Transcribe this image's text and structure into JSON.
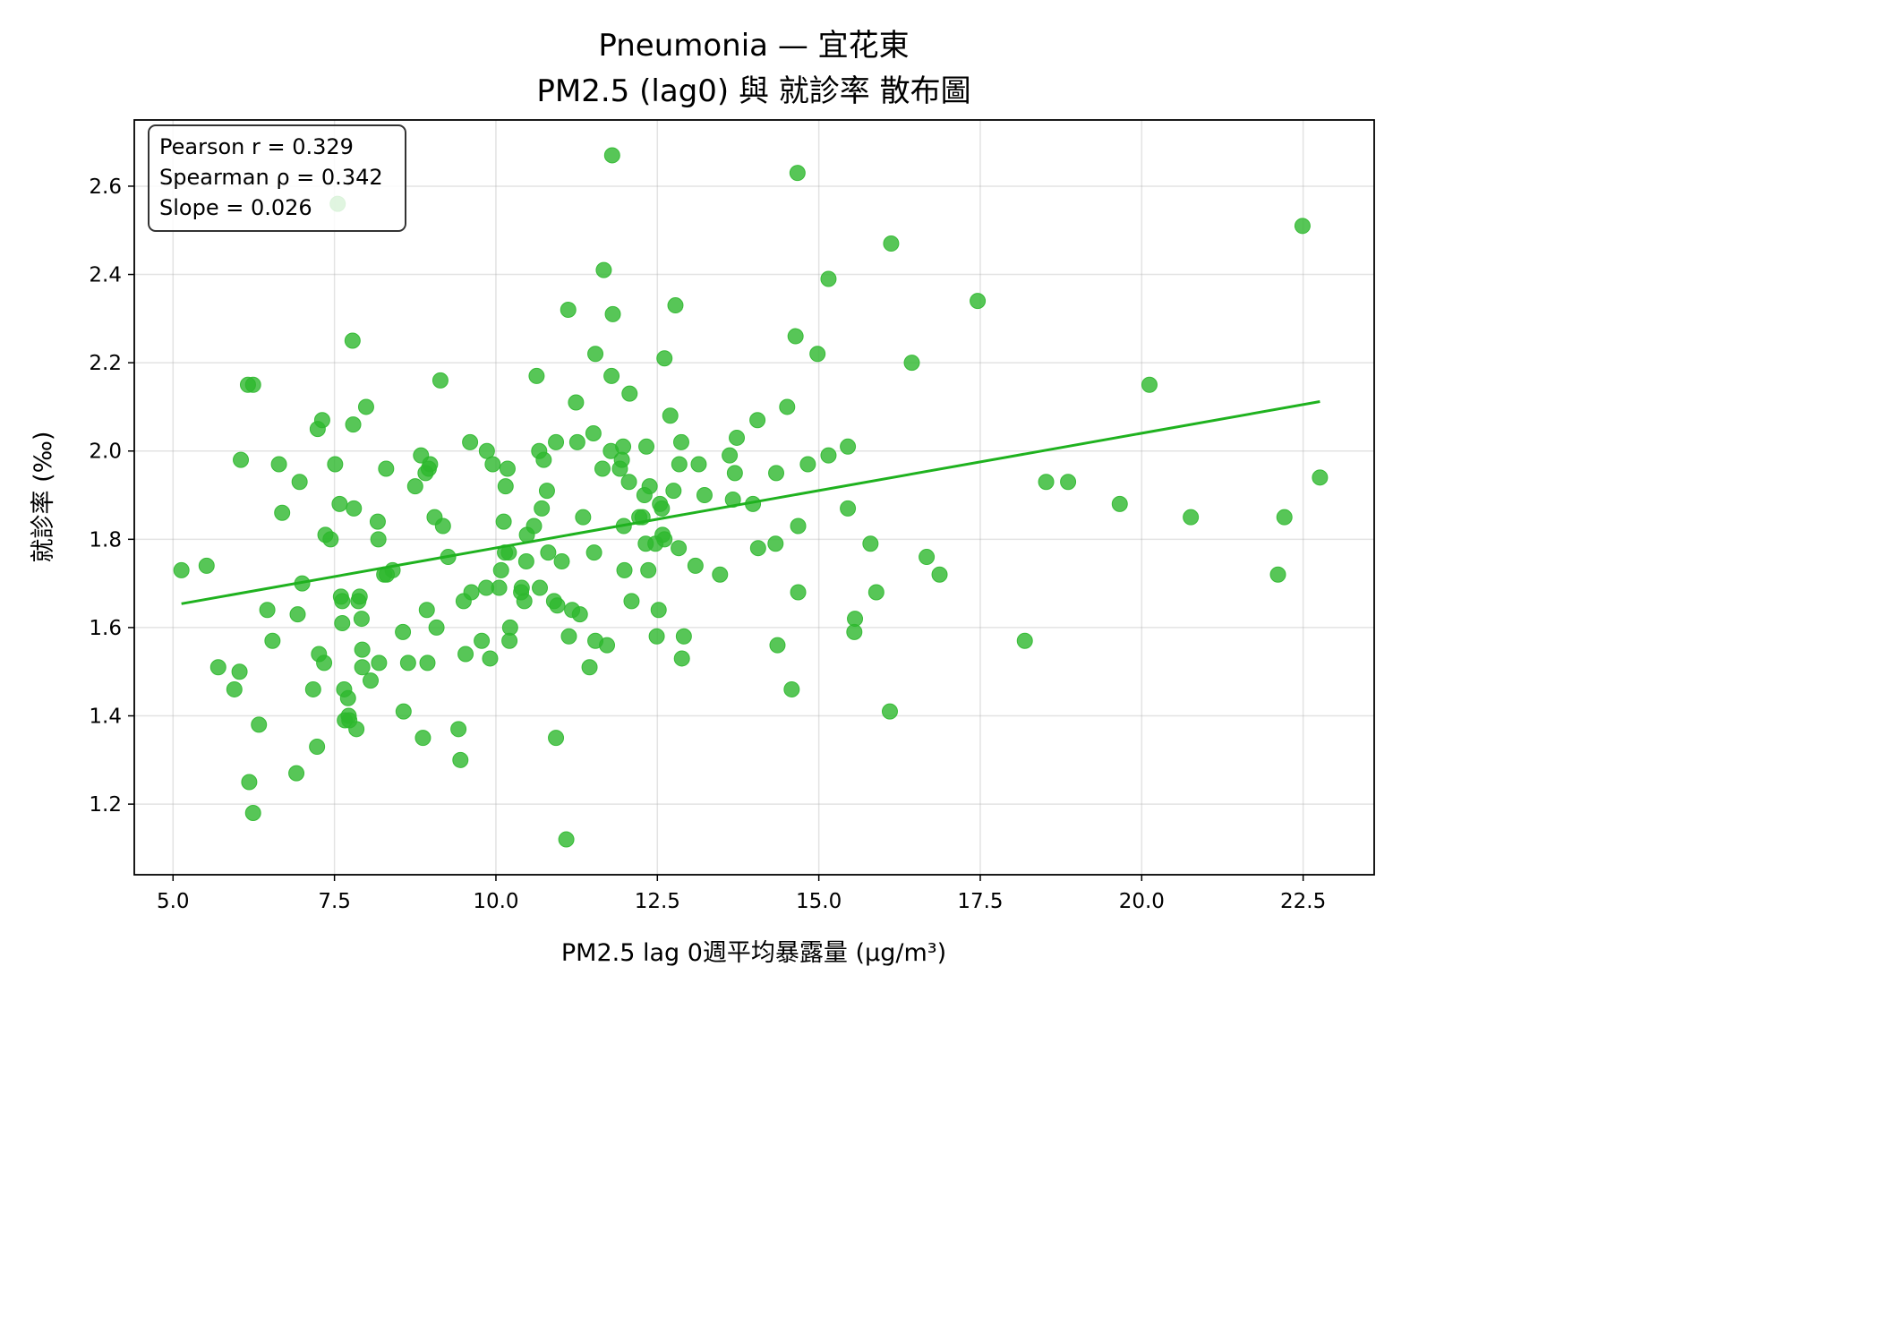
{
  "chart_data": {
    "type": "scatter",
    "title": "Pneumonia — 宜花東",
    "subtitle": "PM2.5 (lag0) 與 就診率 散布圖",
    "xlabel": "PM2.5 lag 0週平均暴露量 (μg/m³)",
    "ylabel": "就診率 (‰)",
    "xlim": [
      4.4,
      23.6
    ],
    "ylim": [
      1.04,
      2.75
    ],
    "x_ticks": [
      "5.0",
      "7.5",
      "10.0",
      "12.5",
      "15.0",
      "17.5",
      "20.0",
      "22.5"
    ],
    "y_ticks": [
      "1.2",
      "1.4",
      "1.6",
      "1.8",
      "2.0",
      "2.2",
      "2.4",
      "2.6"
    ],
    "grid": true,
    "colors": {
      "points": "#2db82d",
      "fit_line": "#1fb21f"
    },
    "stats": {
      "pearson": "Pearson r = 0.329",
      "spearman": "Spearman ρ = 0.342",
      "slope": "Slope = 0.026"
    },
    "fit_line": {
      "x": [
        5.13,
        22.76
      ],
      "y": [
        1.654,
        2.112
      ]
    },
    "points": [
      [
        5.13,
        1.73
      ],
      [
        5.52,
        1.74
      ],
      [
        5.7,
        1.51
      ],
      [
        5.95,
        1.46
      ],
      [
        6.03,
        1.5
      ],
      [
        6.05,
        1.98
      ],
      [
        6.16,
        2.15
      ],
      [
        6.24,
        2.15
      ],
      [
        6.18,
        1.25
      ],
      [
        6.24,
        1.18
      ],
      [
        6.33,
        1.38
      ],
      [
        6.46,
        1.64
      ],
      [
        6.54,
        1.57
      ],
      [
        6.64,
        1.97
      ],
      [
        6.69,
        1.86
      ],
      [
        6.91,
        1.27
      ],
      [
        6.93,
        1.63
      ],
      [
        6.96,
        1.93
      ],
      [
        7.0,
        1.7
      ],
      [
        7.17,
        1.46
      ],
      [
        7.23,
        1.33
      ],
      [
        7.24,
        2.05
      ],
      [
        7.26,
        1.54
      ],
      [
        7.31,
        2.07
      ],
      [
        7.34,
        1.52
      ],
      [
        7.36,
        1.81
      ],
      [
        7.44,
        1.8
      ],
      [
        7.55,
        2.56
      ],
      [
        7.51,
        1.97
      ],
      [
        7.58,
        1.88
      ],
      [
        7.6,
        1.67
      ],
      [
        7.62,
        1.66
      ],
      [
        7.62,
        1.61
      ],
      [
        7.65,
        1.46
      ],
      [
        7.66,
        1.39
      ],
      [
        7.71,
        1.44
      ],
      [
        7.72,
        1.4
      ],
      [
        7.73,
        1.39
      ],
      [
        7.78,
        2.25
      ],
      [
        7.79,
        2.06
      ],
      [
        7.8,
        1.87
      ],
      [
        7.84,
        1.37
      ],
      [
        7.87,
        1.66
      ],
      [
        7.89,
        1.67
      ],
      [
        7.92,
        1.62
      ],
      [
        7.93,
        1.55
      ],
      [
        7.93,
        1.51
      ],
      [
        7.99,
        2.1
      ],
      [
        8.06,
        1.48
      ],
      [
        8.19,
        1.52
      ],
      [
        8.17,
        1.84
      ],
      [
        8.18,
        1.8
      ],
      [
        8.27,
        1.72
      ],
      [
        8.3,
        1.96
      ],
      [
        8.31,
        1.72
      ],
      [
        8.4,
        1.73
      ],
      [
        8.56,
        1.59
      ],
      [
        8.57,
        1.41
      ],
      [
        8.64,
        1.52
      ],
      [
        8.75,
        1.92
      ],
      [
        8.84,
        1.99
      ],
      [
        8.87,
        1.35
      ],
      [
        8.91,
        1.95
      ],
      [
        8.93,
        1.64
      ],
      [
        8.94,
        1.52
      ],
      [
        8.96,
        1.96
      ],
      [
        8.98,
        1.97
      ],
      [
        9.05,
        1.85
      ],
      [
        9.08,
        1.6
      ],
      [
        9.14,
        2.16
      ],
      [
        9.18,
        1.83
      ],
      [
        9.26,
        1.76
      ],
      [
        9.42,
        1.37
      ],
      [
        9.45,
        1.3
      ],
      [
        9.5,
        1.66
      ],
      [
        9.53,
        1.54
      ],
      [
        9.6,
        2.02
      ],
      [
        9.62,
        1.68
      ],
      [
        9.78,
        1.57
      ],
      [
        9.85,
        1.69
      ],
      [
        9.86,
        2.0
      ],
      [
        9.91,
        1.53
      ],
      [
        9.95,
        1.97
      ],
      [
        10.05,
        1.69
      ],
      [
        10.08,
        1.73
      ],
      [
        10.12,
        1.84
      ],
      [
        10.14,
        1.77
      ],
      [
        10.15,
        1.92
      ],
      [
        10.18,
        1.96
      ],
      [
        10.2,
        1.77
      ],
      [
        10.21,
        1.57
      ],
      [
        10.22,
        1.6
      ],
      [
        10.39,
        1.68
      ],
      [
        10.4,
        1.69
      ],
      [
        10.44,
        1.66
      ],
      [
        10.47,
        1.75
      ],
      [
        10.48,
        1.81
      ],
      [
        10.59,
        1.83
      ],
      [
        10.63,
        2.17
      ],
      [
        10.67,
        2.0
      ],
      [
        10.68,
        1.69
      ],
      [
        10.71,
        1.87
      ],
      [
        10.74,
        1.98
      ],
      [
        10.79,
        1.91
      ],
      [
        10.81,
        1.77
      ],
      [
        10.9,
        1.66
      ],
      [
        10.93,
        1.35
      ],
      [
        10.93,
        2.02
      ],
      [
        10.95,
        1.65
      ],
      [
        11.02,
        1.75
      ],
      [
        11.09,
        1.12
      ],
      [
        11.12,
        2.32
      ],
      [
        11.13,
        1.58
      ],
      [
        11.18,
        1.64
      ],
      [
        11.24,
        2.11
      ],
      [
        11.26,
        2.02
      ],
      [
        11.3,
        1.63
      ],
      [
        11.35,
        1.85
      ],
      [
        11.45,
        1.51
      ],
      [
        11.51,
        2.04
      ],
      [
        11.54,
        2.22
      ],
      [
        11.52,
        1.77
      ],
      [
        11.54,
        1.57
      ],
      [
        11.65,
        1.96
      ],
      [
        11.67,
        2.41
      ],
      [
        11.72,
        1.56
      ],
      [
        11.79,
        2.17
      ],
      [
        11.8,
        2.67
      ],
      [
        11.81,
        2.31
      ],
      [
        11.78,
        2.0
      ],
      [
        11.92,
        1.96
      ],
      [
        11.95,
        1.98
      ],
      [
        11.97,
        2.01
      ],
      [
        11.98,
        1.83
      ],
      [
        11.99,
        1.73
      ],
      [
        12.06,
        1.93
      ],
      [
        12.07,
        2.13
      ],
      [
        12.1,
        1.66
      ],
      [
        12.22,
        1.85
      ],
      [
        12.27,
        1.85
      ],
      [
        12.3,
        1.9
      ],
      [
        12.32,
        1.79
      ],
      [
        12.33,
        2.01
      ],
      [
        12.36,
        1.73
      ],
      [
        12.38,
        1.92
      ],
      [
        12.47,
        1.79
      ],
      [
        12.49,
        1.58
      ],
      [
        12.52,
        1.64
      ],
      [
        12.54,
        1.88
      ],
      [
        12.57,
        1.87
      ],
      [
        12.58,
        1.81
      ],
      [
        12.61,
        1.8
      ],
      [
        12.61,
        2.21
      ],
      [
        12.7,
        2.08
      ],
      [
        12.75,
        1.91
      ],
      [
        12.78,
        2.33
      ],
      [
        12.83,
        1.78
      ],
      [
        12.84,
        1.97
      ],
      [
        12.87,
        2.02
      ],
      [
        12.88,
        1.53
      ],
      [
        12.91,
        1.58
      ],
      [
        13.09,
        1.74
      ],
      [
        13.14,
        1.97
      ],
      [
        13.23,
        1.9
      ],
      [
        13.47,
        1.72
      ],
      [
        13.62,
        1.99
      ],
      [
        13.67,
        1.89
      ],
      [
        13.7,
        1.95
      ],
      [
        13.73,
        2.03
      ],
      [
        13.98,
        1.88
      ],
      [
        14.05,
        2.07
      ],
      [
        14.06,
        1.78
      ],
      [
        14.33,
        1.79
      ],
      [
        14.34,
        1.95
      ],
      [
        14.36,
        1.56
      ],
      [
        14.51,
        2.1
      ],
      [
        14.58,
        1.46
      ],
      [
        14.64,
        2.26
      ],
      [
        14.67,
        2.63
      ],
      [
        14.68,
        1.83
      ],
      [
        14.68,
        1.68
      ],
      [
        14.83,
        1.97
      ],
      [
        14.98,
        2.22
      ],
      [
        15.15,
        1.99
      ],
      [
        15.15,
        2.39
      ],
      [
        15.45,
        2.01
      ],
      [
        15.45,
        1.87
      ],
      [
        15.56,
        1.62
      ],
      [
        15.55,
        1.59
      ],
      [
        15.8,
        1.79
      ],
      [
        15.89,
        1.68
      ],
      [
        16.1,
        1.41
      ],
      [
        16.12,
        2.47
      ],
      [
        16.44,
        2.2
      ],
      [
        16.67,
        1.76
      ],
      [
        16.87,
        1.72
      ],
      [
        17.46,
        2.34
      ],
      [
        18.19,
        1.57
      ],
      [
        18.52,
        1.93
      ],
      [
        18.86,
        1.93
      ],
      [
        19.66,
        1.88
      ],
      [
        20.12,
        2.15
      ],
      [
        20.76,
        1.85
      ],
      [
        22.11,
        1.72
      ],
      [
        22.21,
        1.85
      ],
      [
        22.49,
        2.51
      ],
      [
        22.76,
        1.94
      ]
    ]
  }
}
